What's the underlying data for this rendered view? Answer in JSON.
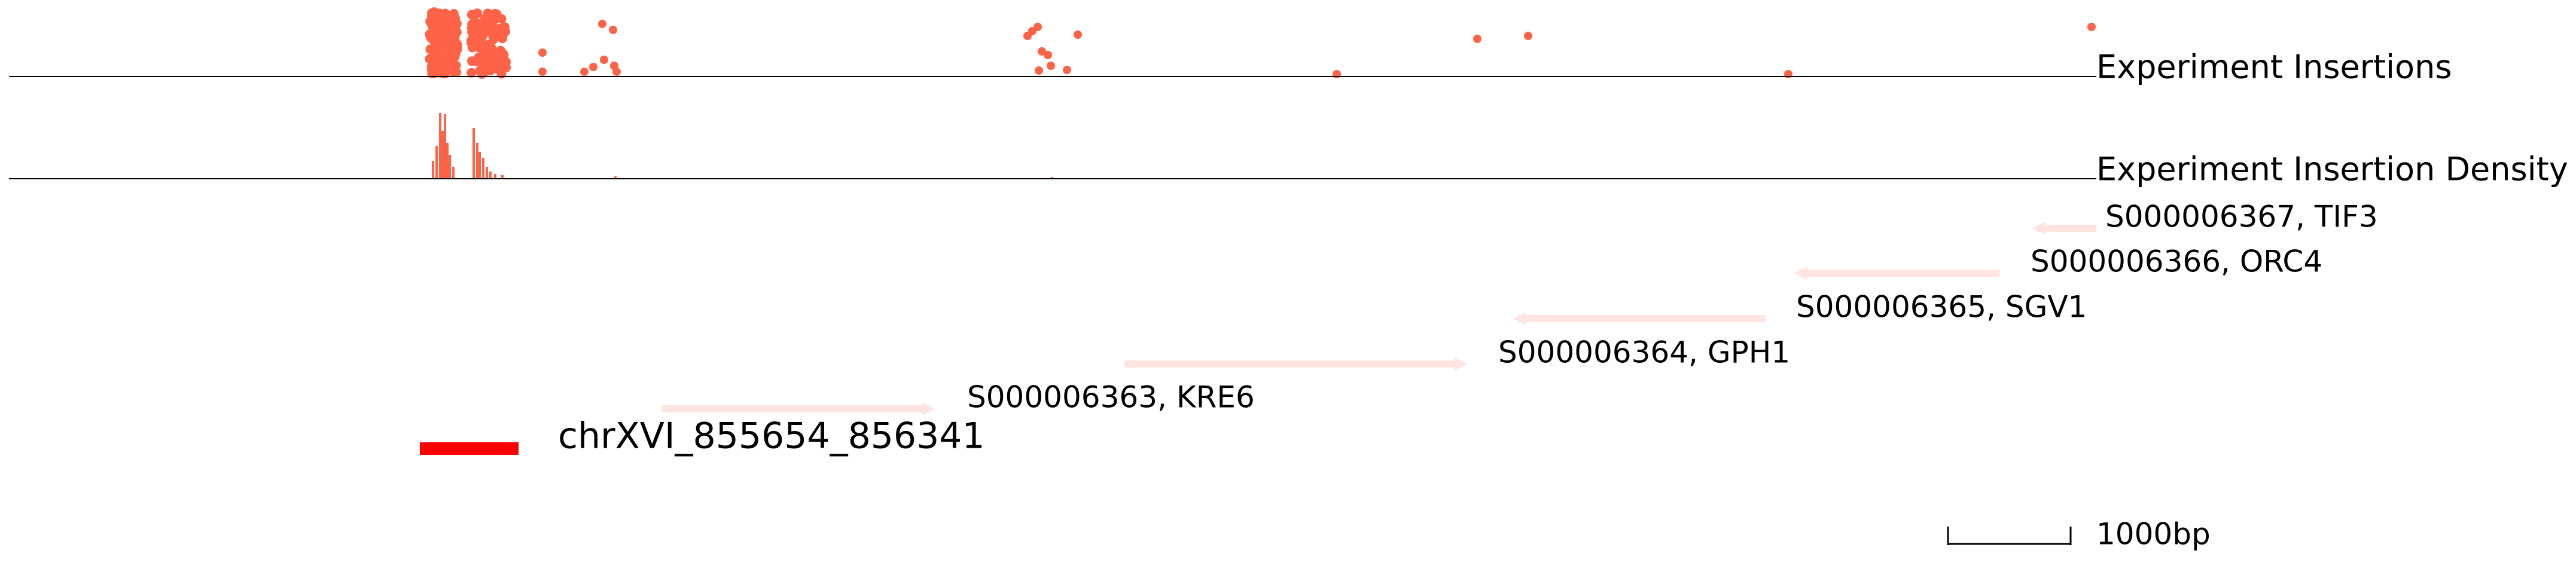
{
  "tracks": {
    "insertions_label": "Experiment Insertions",
    "density_label": "Experiment Insertion Density"
  },
  "genes": [
    {
      "label": "S000006367, TIF3",
      "strand": "-"
    },
    {
      "label": "S000006366, ORC4",
      "strand": "-"
    },
    {
      "label": "S000006365, SGV1",
      "strand": "-"
    },
    {
      "label": "S000006364, GPH1",
      "strand": "+"
    },
    {
      "label": "S000006363, KRE6",
      "strand": "+"
    }
  ],
  "region": {
    "label": "chrXVI_855654_856341"
  },
  "scale_bar": {
    "label": "1000bp"
  },
  "colors": {
    "insertion": "#ff6347",
    "gene": "#ffe4e1",
    "region": "#ff0000",
    "axis": "#000000"
  }
}
